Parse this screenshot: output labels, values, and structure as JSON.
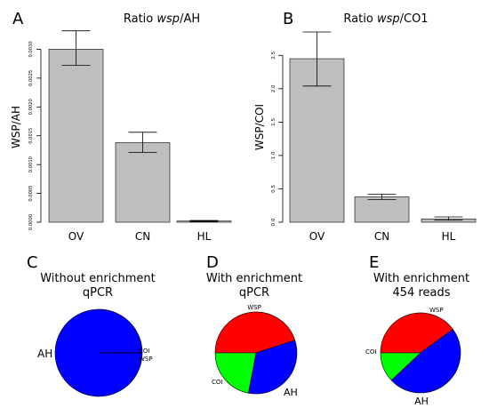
{
  "chart_data": [
    {
      "panel": "A",
      "type": "bar",
      "title_prefix": "Ratio ",
      "title_italic": "wsp",
      "title_suffix": "/AH",
      "ylabel": "WSP/AH",
      "categories": [
        "OV",
        "CN",
        "HL"
      ],
      "values": [
        0.003,
        0.00138,
        2e-05
      ],
      "error_low": [
        0.00272,
        0.00121,
        1e-05
      ],
      "error_high": [
        0.00332,
        0.00156,
        3e-05
      ],
      "yticks": [
        0,
        0.0005,
        0.001,
        0.0015,
        0.002,
        0.0025,
        0.003
      ],
      "ytick_labels": [
        "0.0000",
        "0.0005",
        "0.0010",
        "0.0015",
        "0.0020",
        "0.0025",
        "0.0030"
      ],
      "ylim": [
        0,
        0.0033
      ],
      "bar_color": "#bebebe"
    },
    {
      "panel": "B",
      "type": "bar",
      "title_prefix": "Ratio ",
      "title_italic": "wsp",
      "title_suffix": "/CO1",
      "ylabel": "WSP/COI",
      "categories": [
        "OV",
        "CN",
        "HL"
      ],
      "values": [
        2.45,
        0.38,
        0.05
      ],
      "error_low": [
        2.04,
        0.34,
        0.03
      ],
      "error_high": [
        2.85,
        0.42,
        0.08
      ],
      "yticks": [
        0,
        0.5,
        1.0,
        1.5,
        2.0,
        2.5
      ],
      "ytick_labels": [
        "0.0",
        "0.5",
        "1.0",
        "1.5",
        "2.0",
        "2.5"
      ],
      "ylim": [
        0,
        2.85
      ],
      "bar_color": "#bebebe"
    },
    {
      "panel": "C",
      "type": "pie",
      "title_line1": "Without enrichment",
      "title_line2": "qPCR",
      "slices": [
        {
          "label": "AH",
          "value": 99.98,
          "color": "#0000ff"
        },
        {
          "label": "COI",
          "value": 0.01,
          "color": "#00ff00"
        },
        {
          "label": "WSP",
          "value": 0.01,
          "color": "#ff0000"
        }
      ]
    },
    {
      "panel": "D",
      "type": "pie",
      "title_line1": "With enrichment",
      "title_line2": "qPCR",
      "slices": [
        {
          "label": "WSP",
          "value": 45,
          "color": "#ff0000"
        },
        {
          "label": "AH",
          "value": 33,
          "color": "#0000ff"
        },
        {
          "label": "COI",
          "value": 22,
          "color": "#00ff00"
        }
      ]
    },
    {
      "panel": "E",
      "type": "pie",
      "title_line1": "With enrichment",
      "title_line2": "454 reads",
      "slices": [
        {
          "label": "WSP",
          "value": 40,
          "color": "#ff0000"
        },
        {
          "label": "AH",
          "value": 48,
          "color": "#0000ff"
        },
        {
          "label": "COI",
          "value": 12,
          "color": "#00ff00"
        }
      ]
    }
  ]
}
